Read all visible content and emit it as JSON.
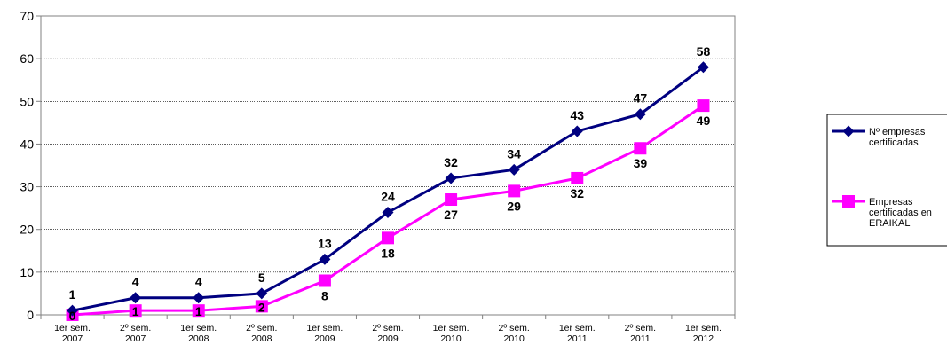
{
  "chart_data": {
    "type": "line",
    "title": "",
    "xlabel": "",
    "ylabel": "",
    "ylim": [
      0,
      70
    ],
    "yticks": [
      0,
      10,
      20,
      30,
      40,
      50,
      60,
      70
    ],
    "grid": true,
    "legend_position": "right",
    "categories": [
      [
        "1er sem.",
        "2007"
      ],
      [
        "2º sem.",
        "2007"
      ],
      [
        "1er sem.",
        "2008"
      ],
      [
        "2º sem.",
        "2008"
      ],
      [
        "1er sem.",
        "2009"
      ],
      [
        "2º sem.",
        "2009"
      ],
      [
        "1er sem.",
        "2010"
      ],
      [
        "2º sem.",
        "2010"
      ],
      [
        "1er sem.",
        "2011"
      ],
      [
        "2º sem.",
        "2011"
      ],
      [
        "1er sem.",
        "2012"
      ]
    ],
    "series": [
      {
        "name": [
          "Nº empresas",
          "certificadas"
        ],
        "color": "#000080",
        "marker": "diamond",
        "values": [
          1,
          4,
          4,
          5,
          13,
          24,
          32,
          34,
          43,
          47,
          58
        ]
      },
      {
        "name": [
          "Empresas",
          "certificadas en",
          "ERAIKAL"
        ],
        "color": "#FF00FF",
        "marker": "square",
        "values": [
          0,
          1,
          1,
          2,
          8,
          18,
          27,
          29,
          32,
          39,
          49
        ]
      }
    ]
  }
}
